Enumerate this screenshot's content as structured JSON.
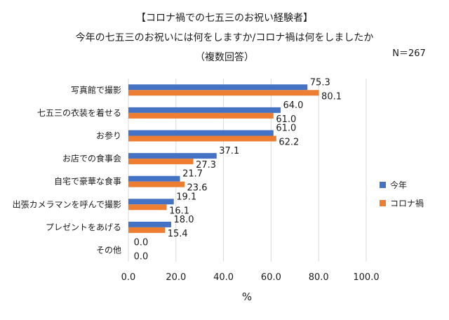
{
  "chart_data": {
    "type": "bar",
    "orientation": "horizontal",
    "title_lines": [
      "【コロナ禍での七五三のお祝い経験者】",
      "今年の七五三のお祝いには何をしますか/コロナ禍は何をしましたか",
      "（複数回答）"
    ],
    "sample_size": "N＝267",
    "categories": [
      "写真館で撮影",
      "七五三の衣装を着せる",
      "お参り",
      "お店での食事会",
      "自宅で豪華な食事",
      "出張カメラマンを呼んで撮影",
      "プレゼントをあげる",
      "その他"
    ],
    "series": [
      {
        "name": "今年",
        "color": "#4472C4",
        "values": [
          75.3,
          64.0,
          61.0,
          37.1,
          21.7,
          19.1,
          18.0,
          0.0
        ]
      },
      {
        "name": "コロナ禍",
        "color": "#ED7D31",
        "values": [
          80.1,
          61.0,
          62.2,
          27.3,
          23.6,
          16.1,
          15.4,
          0.0
        ]
      }
    ],
    "xlim": [
      0,
      100
    ],
    "x_ticks": [
      "0.0",
      "20.0",
      "40.0",
      "60.0",
      "80.0",
      "100.0"
    ],
    "xlabel": "%",
    "grid": true,
    "legend_position": "right"
  }
}
